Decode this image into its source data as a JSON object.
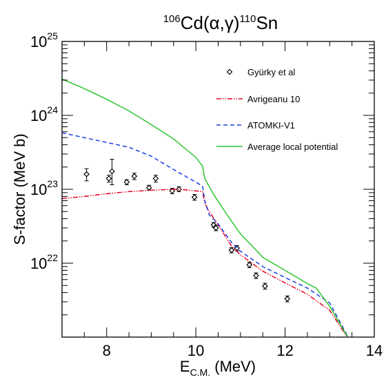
{
  "chart_data": {
    "type": "line",
    "title": {
      "pre": "106",
      "a": "Cd(α,γ)",
      "sup": "110",
      "b": "Sn"
    },
    "xlabel": {
      "main": "E",
      "sub": "C.M.",
      "unit": " (MeV)"
    },
    "ylabel": "S-factor (MeV b)",
    "xlim": [
      7.0,
      14.0
    ],
    "ylim_log10": [
      21.0,
      25.0
    ],
    "xscale": "linear",
    "yscale": "log",
    "x_ticks": [
      8,
      10,
      12,
      14
    ],
    "y_ticks": [
      {
        "value": 22,
        "base": "10",
        "exp": "22"
      },
      {
        "value": 23,
        "base": "10",
        "exp": "23"
      },
      {
        "value": 24,
        "base": "10",
        "exp": "24"
      },
      {
        "value": 25,
        "base": "10",
        "exp": "25"
      }
    ],
    "grid": false,
    "legend_position": "top-right",
    "series": [
      {
        "name": "Gyürky et al",
        "kind": "points",
        "color": "#000000",
        "x": [
          7.55,
          8.05,
          8.12,
          8.45,
          8.62,
          8.95,
          9.1,
          9.47,
          9.62,
          9.97,
          10.4,
          10.45,
          10.8,
          10.92,
          11.2,
          11.35,
          11.55,
          12.05
        ],
        "y": [
          1.6e+23,
          1.4e+23,
          1.75e+23,
          1.25e+23,
          1.5e+23,
          1.05e+23,
          1.4e+23,
          9.5e+22,
          1e+23,
          7.8e+22,
          3.3e+22,
          3e+22,
          1.5e+22,
          1.6e+22,
          9.5e+21,
          6.8e+21,
          4.9e+21,
          3.3e+21
        ],
        "err_lo": [
          1.3e+23,
          1.25e+23,
          1.15e+23,
          1.15e+23,
          1.35e+23,
          9.7e+22,
          1.25e+23,
          8.7e+22,
          9.3e+22,
          7.1e+22,
          3.05e+22,
          2.75e+22,
          1.38e+22,
          1.47e+22,
          8.7e+21,
          6.2e+21,
          4.45e+21,
          3e+21
        ],
        "err_hi": [
          1.9e+23,
          1.55e+23,
          2.55e+23,
          1.35e+23,
          1.65e+23,
          1.13e+23,
          1.55e+23,
          1.03e+23,
          1.08e+23,
          8.5e+22,
          3.55e+22,
          3.25e+22,
          1.62e+22,
          1.73e+22,
          1.03e+22,
          7.4e+21,
          5.35e+21,
          3.6e+21
        ]
      },
      {
        "name": "Avrigeanu 10",
        "kind": "line",
        "color": "#e8001e",
        "dash": "7,2,1.5,2,1.5,2",
        "x": [
          7.0,
          7.5,
          8.0,
          8.5,
          9.0,
          9.5,
          9.8,
          10.0,
          10.15,
          10.2,
          10.3,
          10.5,
          10.8,
          11.0,
          11.5,
          12.0,
          12.5,
          13.0,
          13.5
        ],
        "y": [
          7.5e+22,
          8e+22,
          8.7e+22,
          9.3e+22,
          9.7e+22,
          1e+23,
          9.8e+22,
          9.5e+22,
          9.3e+22,
          6.5e+22,
          5e+22,
          3.3e+22,
          1.7e+22,
          1.3e+22,
          7.8e+21,
          5.4e+21,
          3.8e+21,
          2.3e+21,
          8e+20
        ]
      },
      {
        "name": "ATOMKI-V1",
        "kind": "line",
        "color": "#1a3ee0",
        "dash": "6,4",
        "x": [
          7.0,
          7.5,
          8.0,
          8.5,
          9.0,
          9.5,
          10.0,
          10.15,
          10.2,
          10.3,
          10.5,
          10.8,
          11.0,
          11.5,
          12.0,
          12.5,
          13.0,
          13.5
        ],
        "y": [
          5.8e+23,
          5e+23,
          4.3e+23,
          3.7e+23,
          2.8e+23,
          1.85e+23,
          1.25e+23,
          1.1e+23,
          7e+22,
          4.5e+22,
          3.4e+22,
          1.9e+22,
          1.45e+22,
          9e+21,
          6.4e+21,
          4.6e+21,
          2.9e+21,
          8e+20
        ]
      },
      {
        "name": "Average local potential",
        "kind": "line",
        "color": "#2ec42e",
        "dash": "",
        "x": [
          7.0,
          7.5,
          8.0,
          8.5,
          9.0,
          9.5,
          10.0,
          10.15,
          10.2,
          10.4,
          10.7,
          11.0,
          11.5,
          12.0,
          12.5,
          12.7,
          13.0,
          13.5
        ],
        "y": [
          3.1e+24,
          2.3e+24,
          1.65e+24,
          1.15e+24,
          7.5e+23,
          4.8e+23,
          2.7e+23,
          2.05e+23,
          1.4e+23,
          8.5e+22,
          4.5e+22,
          2.5e+22,
          1.2e+22,
          8e+21,
          5.3e+21,
          4.6e+21,
          2.6e+21,
          8e+20
        ]
      }
    ]
  }
}
